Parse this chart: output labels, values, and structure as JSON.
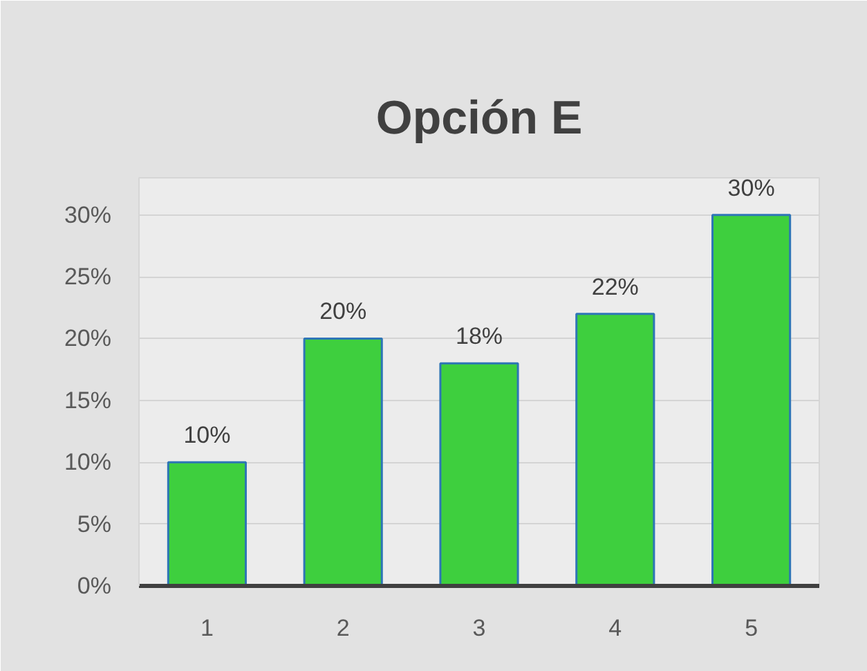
{
  "chart_data": {
    "type": "bar",
    "title": "Opción E",
    "categories": [
      "1",
      "2",
      "3",
      "4",
      "5"
    ],
    "values": [
      10,
      20,
      18,
      22,
      30
    ],
    "color": "#3ecf3e",
    "ylim": [
      0,
      33
    ],
    "yticks": [
      {
        "value": 0,
        "label": "0%"
      },
      {
        "value": 5,
        "label": "5%"
      },
      {
        "value": 10,
        "label": "10%"
      },
      {
        "value": 15,
        "label": "15%"
      },
      {
        "value": 20,
        "label": "20%"
      },
      {
        "value": 25,
        "label": "25%"
      },
      {
        "value": 30,
        "label": "30%"
      }
    ],
    "value_labels": [
      "10%",
      "20%",
      "18%",
      "22%",
      "30%"
    ],
    "grid": "y"
  }
}
